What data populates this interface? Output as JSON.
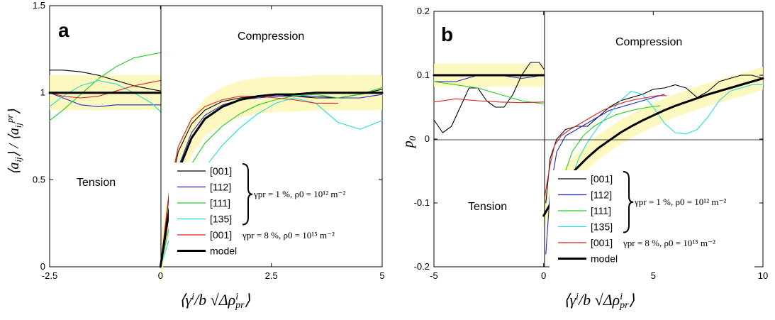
{
  "chart_data": [
    {
      "type": "line",
      "panel": "a",
      "ylabel": "⟨aij⟩ / ⟨aijpr⟩",
      "xlabel": "⟨γi/b √Δρipr⟩",
      "xlim": [
        -2.5,
        5
      ],
      "ylim": [
        0,
        1.5
      ],
      "xticks": [
        "-2.5",
        "0",
        "2.5",
        "5"
      ],
      "yticks": [
        "0",
        "0.5",
        "1",
        "1.5"
      ],
      "regions": [
        "Tension",
        "Compression"
      ],
      "conditions": [
        "γpr = 1 %, ρ0 = 10¹² m⁻²",
        "γpr = 8 %, ρ0 = 10¹⁵ m⁻²"
      ],
      "grid": false,
      "legend": "bottom-right",
      "series": [
        {
          "name": "[001]",
          "color": "#000000",
          "x": [
            -2.5,
            -2.2,
            -1.8,
            -1.4,
            -1.0,
            -0.6,
            -0.2,
            -0.0
          ],
          "y": [
            1.13,
            1.13,
            1.12,
            1.1,
            1.07,
            1.04,
            1.02,
            1.01
          ]
        },
        {
          "name": "[112]",
          "color": "#2222cc",
          "x": [
            -2.5,
            -2.2,
            -1.8,
            -1.4,
            -1.0,
            -0.6,
            -0.2,
            -0.0
          ],
          "y": [
            1.0,
            0.97,
            0.93,
            0.92,
            0.93,
            0.93,
            0.93,
            0.93
          ]
        },
        {
          "name": "[111]",
          "color": "#22cc22",
          "x": [
            -2.5,
            -2.2,
            -1.8,
            -1.4,
            -1.0,
            -0.6,
            -0.2,
            -0.0
          ],
          "y": [
            0.84,
            0.9,
            0.99,
            1.08,
            1.15,
            1.2,
            1.22,
            1.23
          ]
        },
        {
          "name": "[135]",
          "color": "#22dddd",
          "x": [
            -2.5,
            -2.2,
            -1.8,
            -1.4,
            -1.0,
            -0.6,
            -0.2,
            -0.0
          ],
          "y": [
            0.92,
            0.98,
            1.04,
            1.07,
            1.05,
            1.0,
            0.94,
            0.89
          ]
        },
        {
          "name": "[001]",
          "color": "#dd2222",
          "x": [
            -2.5,
            -2.2,
            -1.8,
            -1.4,
            -1.0,
            -0.6,
            -0.2,
            -0.0
          ],
          "y": [
            1.0,
            0.98,
            0.97,
            0.98,
            1.01,
            1.04,
            1.06,
            1.07
          ]
        },
        {
          "name": "model",
          "color": "#000000",
          "x": [
            -2.5,
            -0.0
          ],
          "y": [
            1.0,
            1.0
          ]
        },
        {
          "name": "[001]",
          "color": "#000000",
          "x": [
            0,
            0.2,
            0.4,
            0.7,
            1.0,
            1.4,
            1.8,
            2.2,
            2.6,
            3.0,
            3.5,
            4.0,
            4.5,
            5.0
          ],
          "y": [
            0,
            0.42,
            0.66,
            0.82,
            0.9,
            0.95,
            0.97,
            0.98,
            0.99,
            0.98,
            0.97,
            0.97,
            0.99,
            1.02
          ]
        },
        {
          "name": "[112]",
          "color": "#2222cc",
          "x": [
            0,
            0.2,
            0.4,
            0.7,
            1.0,
            1.4,
            1.8,
            2.2,
            2.6,
            3.0,
            3.5,
            4.0,
            4.5,
            5.0
          ],
          "y": [
            0,
            0.33,
            0.57,
            0.77,
            0.87,
            0.93,
            0.96,
            0.97,
            0.98,
            0.98,
            0.98,
            0.97,
            0.97,
            0.99
          ]
        },
        {
          "name": "[111]",
          "color": "#22cc22",
          "x": [
            0,
            0.2,
            0.4,
            0.7,
            1.0,
            1.4,
            1.8,
            2.2,
            2.6,
            3.0,
            3.5,
            4.0,
            4.5,
            5.0
          ],
          "y": [
            0,
            0.23,
            0.41,
            0.59,
            0.71,
            0.81,
            0.88,
            0.93,
            0.96,
            0.98,
            0.99,
            0.97,
            0.99,
            1.03
          ]
        },
        {
          "name": "[135]",
          "color": "#22dddd",
          "x": [
            0,
            0.2,
            0.4,
            0.7,
            1.0,
            1.4,
            1.8,
            2.2,
            2.6,
            3.0,
            3.5,
            4.0,
            4.5,
            5.0
          ],
          "y": [
            0,
            0.16,
            0.29,
            0.44,
            0.57,
            0.7,
            0.8,
            0.88,
            0.94,
            0.97,
            0.94,
            0.83,
            0.79,
            0.84
          ]
        },
        {
          "name": "[001]",
          "color": "#dd2222",
          "x": [
            0,
            0.2,
            0.4,
            0.7,
            1.0,
            1.4,
            1.8,
            2.2,
            2.6,
            3.0,
            3.5,
            4.0
          ],
          "y": [
            0,
            0.44,
            0.69,
            0.85,
            0.92,
            0.96,
            0.98,
            0.98,
            0.97,
            0.96,
            0.94,
            0.94
          ]
        },
        {
          "name": "model",
          "color": "#000000",
          "x": [
            0,
            0.2,
            0.4,
            0.7,
            1.0,
            1.4,
            1.8,
            2.2,
            2.6,
            3.0,
            3.5,
            4.0,
            4.5,
            5.0
          ],
          "y": [
            0,
            0.33,
            0.55,
            0.74,
            0.85,
            0.92,
            0.96,
            0.98,
            0.99,
            0.99,
            1.0,
            1.0,
            1.0,
            1.0
          ]
        }
      ]
    },
    {
      "type": "line",
      "panel": "b",
      "ylabel": "p0",
      "xlabel": "⟨γi/b √Δρipr⟩",
      "xlim": [
        -5,
        10
      ],
      "ylim": [
        -0.2,
        0.2
      ],
      "xticks": [
        "-5",
        "0",
        "5",
        "10"
      ],
      "yticks": [
        "-0.2",
        "-0.1",
        "0",
        "0.1",
        "0.2"
      ],
      "regions": [
        "Tension",
        "Compression"
      ],
      "conditions": [
        "γpr = 1 %, ρ0 = 10¹² m⁻²",
        "γpr = 8 %, ρ0 = 10¹⁵ m⁻²"
      ],
      "grid": false,
      "legend": "bottom-right",
      "series": [
        {
          "name": "[001]",
          "color": "#000000",
          "x": [
            -5,
            -4.6,
            -4.2,
            -3.8,
            -3.4,
            -3.0,
            -2.6,
            -2.2,
            -1.8,
            -1.4,
            -1.0,
            -0.6,
            -0.2,
            0
          ],
          "y": [
            0.03,
            0.01,
            0.02,
            0.05,
            0.08,
            0.08,
            0.06,
            0.05,
            0.05,
            0.07,
            0.1,
            0.12,
            0.12,
            0.11
          ]
        },
        {
          "name": "[112]",
          "color": "#2222cc",
          "x": [
            -5,
            -4.0,
            -3.0,
            -2.0,
            -1.0,
            0
          ],
          "y": [
            0.09,
            0.09,
            0.1,
            0.1,
            0.095,
            0.1
          ]
        },
        {
          "name": "[111]",
          "color": "#22cc22",
          "x": [
            -5,
            -4.0,
            -3.0,
            -2.0,
            -1.0,
            0
          ],
          "y": [
            0.09,
            0.085,
            0.08,
            0.07,
            0.06,
            0.055
          ]
        },
        {
          "name": "[001]",
          "color": "#dd2222",
          "x": [
            -5,
            -4.0,
            -3.0,
            -2.0,
            -1.0,
            0
          ],
          "y": [
            0.058,
            0.063,
            0.06,
            0.058,
            0.057,
            0.058
          ]
        },
        {
          "name": "model",
          "color": "#000000",
          "x": [
            -5,
            0
          ],
          "y": [
            0.1,
            0.1
          ]
        },
        {
          "name": "[001]",
          "color": "#000000",
          "x": [
            0.1,
            0.3,
            0.6,
            1.0,
            1.5,
            2.0,
            2.5,
            3.0,
            3.5,
            4.0,
            4.5,
            5.0,
            5.5,
            6.0,
            6.5,
            7.0,
            7.5,
            8.0,
            8.5,
            9.0,
            9.5,
            10.0
          ],
          "y": [
            -0.1,
            -0.03,
            0.0,
            0.015,
            0.02,
            0.02,
            0.035,
            0.05,
            0.06,
            0.065,
            0.07,
            0.078,
            0.08,
            0.085,
            0.08,
            0.065,
            0.075,
            0.09,
            0.095,
            0.1,
            0.1,
            0.095
          ]
        },
        {
          "name": "[112]",
          "color": "#2222cc",
          "x": [
            0.1,
            0.3,
            0.6,
            1.0,
            1.5,
            2.0,
            2.5,
            3.0,
            3.5,
            4.0,
            4.5,
            5.0,
            5.5
          ],
          "y": [
            -0.18,
            -0.08,
            -0.02,
            0.005,
            0.015,
            0.025,
            0.035,
            0.045,
            0.05,
            0.055,
            0.06,
            0.065,
            0.07
          ]
        },
        {
          "name": "[111]",
          "color": "#22cc22",
          "x": [
            0.4,
            0.6,
            0.9,
            1.3,
            1.8,
            2.3,
            2.8,
            3.3,
            3.8,
            4.3,
            4.8,
            5.3
          ],
          "y": [
            -0.2,
            -0.12,
            -0.06,
            -0.02,
            0.005,
            0.02,
            0.03,
            0.038,
            0.043,
            0.047,
            0.05,
            0.052
          ]
        },
        {
          "name": "[135]",
          "color": "#22dddd",
          "x": [
            0.7,
            0.9,
            1.2,
            1.6,
            2.0,
            2.5,
            3.0,
            3.5,
            4.0,
            4.5,
            5.0,
            5.5,
            6.0,
            6.5,
            7.0,
            7.5,
            8.0,
            8.5,
            9.0,
            9.5,
            10.0
          ],
          "y": [
            -0.2,
            -0.13,
            -0.07,
            -0.03,
            -0.005,
            0.02,
            0.04,
            0.06,
            0.075,
            0.07,
            0.05,
            0.025,
            0.01,
            0.008,
            0.015,
            0.035,
            0.06,
            0.075,
            0.08,
            0.085,
            0.085
          ]
        },
        {
          "name": "[001]",
          "color": "#dd2222",
          "x": [
            0.05,
            0.15,
            0.3,
            0.5,
            0.8,
            1.2,
            1.7,
            2.2,
            2.7,
            3.2,
            3.7,
            4.2,
            4.7,
            5.2,
            5.6
          ],
          "y": [
            -0.09,
            -0.07,
            -0.04,
            -0.01,
            0.005,
            0.015,
            0.025,
            0.035,
            0.045,
            0.052,
            0.058,
            0.062,
            0.065,
            0.068,
            0.068
          ]
        },
        {
          "name": "model",
          "color": "#000000",
          "x": [
            0,
            0.5,
            1.0,
            1.5,
            2.0,
            2.5,
            3.0,
            3.5,
            4.0,
            4.5,
            5.0,
            5.5,
            6.0,
            6.5,
            7.0,
            7.5,
            8.0,
            8.5,
            9.0,
            9.5,
            10.0
          ],
          "y": [
            -0.12,
            -0.09,
            -0.066,
            -0.046,
            -0.029,
            -0.014,
            -0.002,
            0.01,
            0.02,
            0.029,
            0.037,
            0.045,
            0.052,
            0.058,
            0.064,
            0.07,
            0.075,
            0.08,
            0.085,
            0.09,
            0.095
          ]
        }
      ]
    }
  ],
  "legend": {
    "entries": [
      "[001]",
      "[112]",
      "[111]",
      "[135]",
      "[001]",
      "model"
    ],
    "colors": [
      "#000000",
      "#2222cc",
      "#22cc22",
      "#22dddd",
      "#dd2222",
      "#000000"
    ]
  }
}
